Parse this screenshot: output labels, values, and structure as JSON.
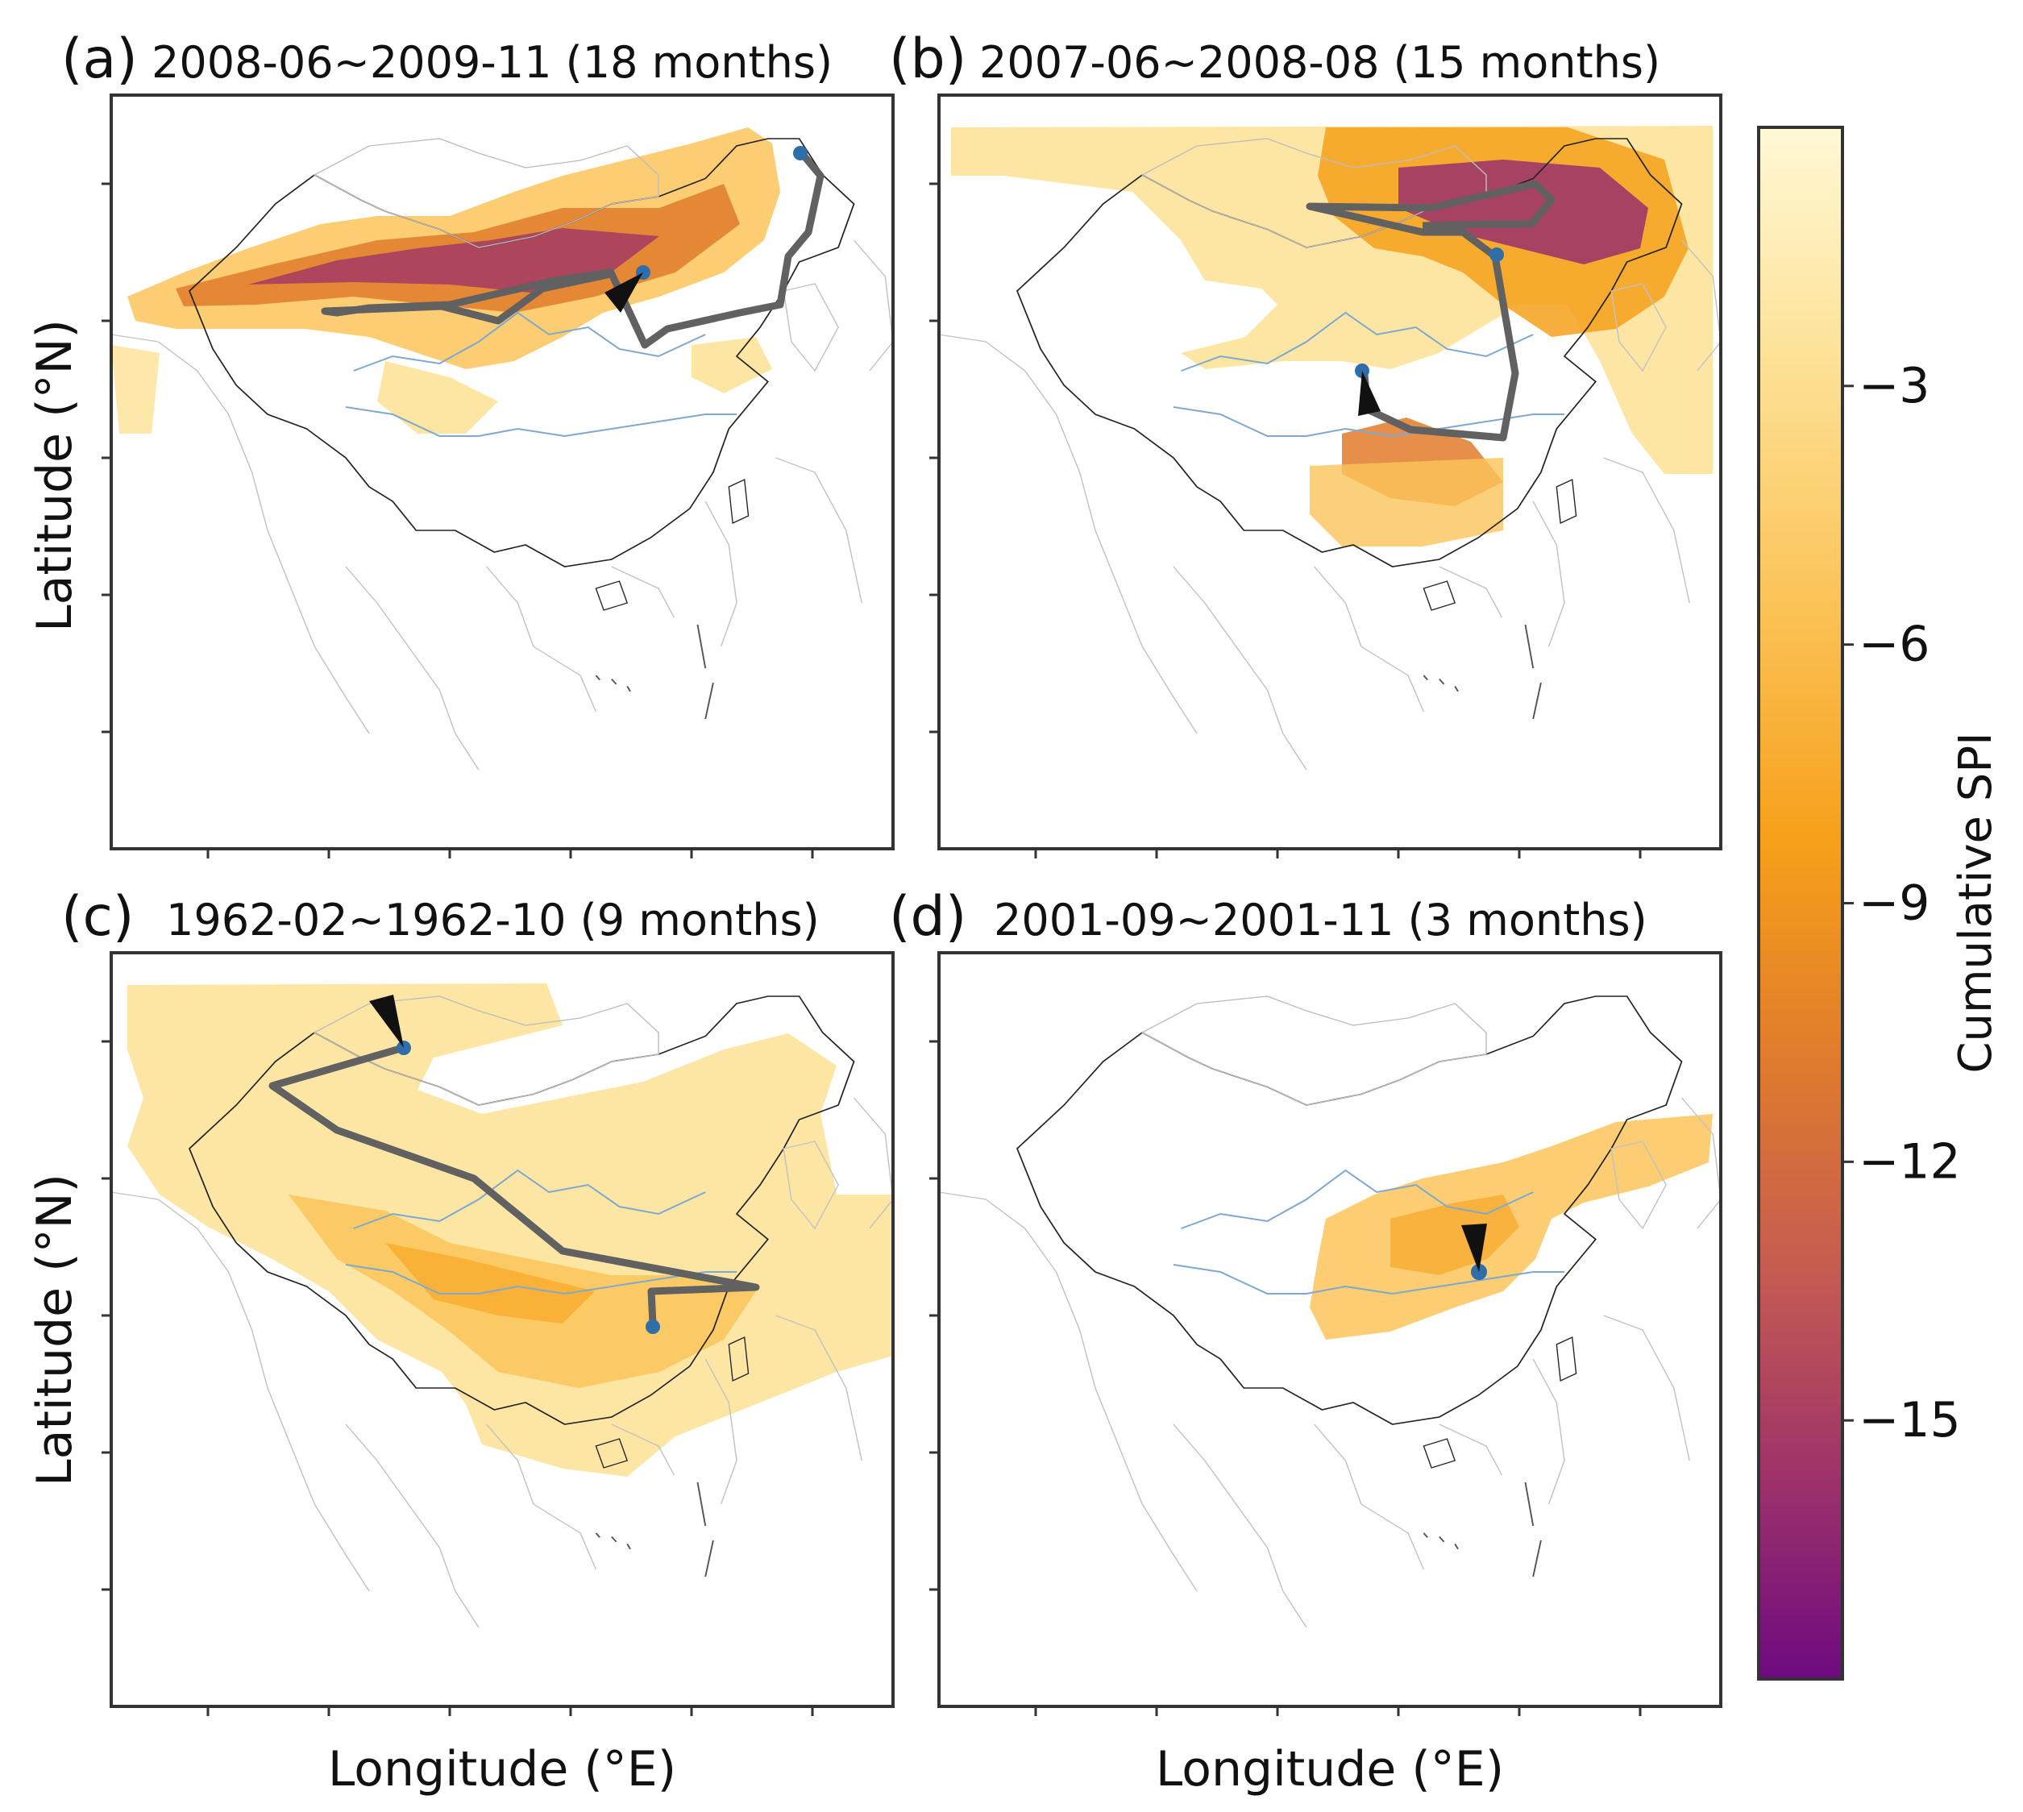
{
  "figure": {
    "y_axis_label": "Latitude (°N)",
    "x_axis_label": "Longitude (°E)",
    "colorbar": {
      "label": "Cumulative SPI",
      "ticks": [
        "−3",
        "−6",
        "−9",
        "−12",
        "−15"
      ],
      "tick_values": [
        -3,
        -6,
        -9,
        -12,
        -15
      ],
      "range": [
        -18,
        0
      ],
      "colormap": [
        "#fff8d6",
        "#fde39a",
        "#fbc45a",
        "#f6a01a",
        "#e07b2c",
        "#c45b52",
        "#9a2f6b",
        "#6e0a80"
      ]
    },
    "colors": {
      "trajectory": "#616161",
      "start_point": "#2f6ea8",
      "arrow": "#111111",
      "rivers": "#7ea8cf",
      "borders": "#222222",
      "coastlines": "#b8b8b8"
    }
  },
  "panels": [
    {
      "letter": "(a)",
      "title": "2008-06~2009-11 (18 months)"
    },
    {
      "letter": "(b)",
      "title": "2007-06~2008-08 (15 months)"
    },
    {
      "letter": "(c)",
      "title": "1962-02~1962-10 (9 months)"
    },
    {
      "letter": "(d)",
      "title": "2001-09~2001-11 (3 months)"
    }
  ]
}
